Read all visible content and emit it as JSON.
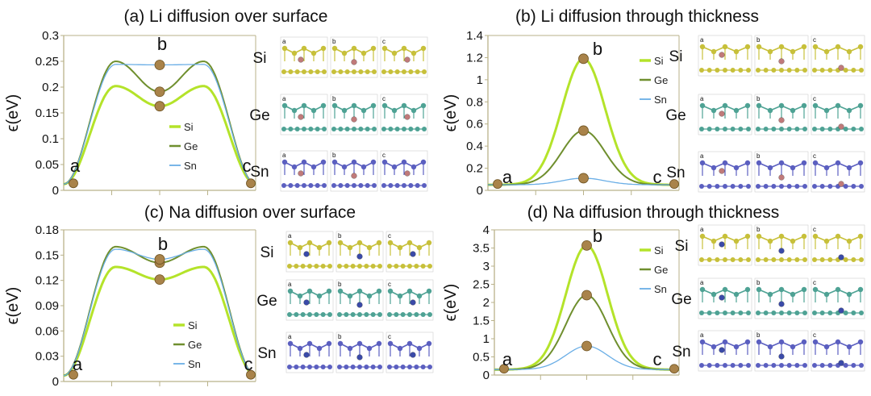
{
  "colors": {
    "si": "#b4e32a",
    "ge": "#6f8f2e",
    "sn": "#6aaee6",
    "axis": "#b9b28a",
    "marker": "#a9834a",
    "si_atom": "#c7c03a",
    "ge_atom": "#4ea294",
    "sn_atom": "#5b5fc0",
    "li_atom": "#c07a7a",
    "na_atom": "#3a4aa8"
  },
  "chart_data": [
    {
      "id": "a",
      "type": "line",
      "title": "(a) Li diffusion over surface",
      "ylabel": "ϵ(eV)",
      "ylim": [
        0,
        0.3
      ],
      "yticks": [
        "0",
        "0.05",
        "0.1",
        "0.15",
        "0.2",
        "0.25",
        "0.3"
      ],
      "shape": "double-hump",
      "series": [
        {
          "name": "Si",
          "color_key": "si",
          "values": [
            0.012,
            0.202,
            0.163,
            0.202,
            0.012
          ]
        },
        {
          "name": "Ge",
          "color_key": "ge",
          "values": [
            0.012,
            0.25,
            0.191,
            0.25,
            0.012
          ]
        },
        {
          "name": "Sn",
          "color_key": "sn",
          "values": [
            0.012,
            0.244,
            0.243,
            0.244,
            0.012
          ]
        }
      ],
      "point_labels": [
        "a",
        "b",
        "c"
      ],
      "element_labels": [
        "Si",
        "Ge",
        "Sn"
      ],
      "thumb_labels": [
        "a",
        "b",
        "c"
      ],
      "ion": "li"
    },
    {
      "id": "b",
      "type": "line",
      "title": "(b) Li diffusion through thickness",
      "ylabel": "ϵ(eV)",
      "ylim": [
        0,
        1.4
      ],
      "yticks": [
        "0",
        "0.2",
        "0.4",
        "0.6",
        "0.8",
        "1",
        "1.2",
        "1.4"
      ],
      "shape": "single-peak",
      "series": [
        {
          "name": "Si",
          "color_key": "si",
          "values": [
            0.05,
            1.19,
            0.05
          ]
        },
        {
          "name": "Ge",
          "color_key": "ge",
          "values": [
            0.05,
            0.54,
            0.05
          ]
        },
        {
          "name": "Sn",
          "color_key": "sn",
          "values": [
            0.05,
            0.11,
            0.05
          ]
        }
      ],
      "point_labels": [
        "a",
        "b",
        "c"
      ],
      "element_labels": [
        "Si",
        "Ge",
        "Sn"
      ],
      "thumb_labels": [
        "a",
        "b",
        "c"
      ],
      "ion": "li"
    },
    {
      "id": "c",
      "type": "line",
      "title": "(c) Na diffusion over surface",
      "ylabel": "ϵ(eV)",
      "ylim": [
        0,
        0.18
      ],
      "yticks": [
        "0",
        "0.03",
        "0.06",
        "0.09",
        "0.12",
        "0.15",
        "0.18"
      ],
      "shape": "double-hump",
      "series": [
        {
          "name": "Si",
          "color_key": "si",
          "values": [
            0.007,
            0.136,
            0.121,
            0.136,
            0.007
          ]
        },
        {
          "name": "Ge",
          "color_key": "ge",
          "values": [
            0.007,
            0.16,
            0.141,
            0.16,
            0.007
          ]
        },
        {
          "name": "Sn",
          "color_key": "sn",
          "values": [
            0.007,
            0.157,
            0.145,
            0.157,
            0.007
          ]
        }
      ],
      "point_labels": [
        "a",
        "b",
        "c"
      ],
      "element_labels": [
        "Si",
        "Ge",
        "Sn"
      ],
      "thumb_labels": [
        "a",
        "b",
        "c"
      ],
      "ion": "na"
    },
    {
      "id": "d",
      "type": "line",
      "title": "(d) Na diffusion through thickness",
      "ylabel": "ϵ(eV)",
      "ylim": [
        0,
        4
      ],
      "yticks": [
        "0",
        "0.5",
        "1",
        "1.5",
        "2",
        "2.5",
        "3",
        "3.5",
        "4"
      ],
      "shape": "single-peak",
      "series": [
        {
          "name": "Si",
          "color_key": "si",
          "values": [
            0.15,
            3.57,
            0.15
          ]
        },
        {
          "name": "Ge",
          "color_key": "ge",
          "values": [
            0.15,
            2.2,
            0.15
          ]
        },
        {
          "name": "Sn",
          "color_key": "sn",
          "values": [
            0.15,
            0.8,
            0.15
          ]
        }
      ],
      "point_labels": [
        "a",
        "b",
        "c"
      ],
      "element_labels": [
        "Si",
        "Ge",
        "Sn"
      ],
      "thumb_labels": [
        "a",
        "b",
        "c"
      ],
      "ion": "na"
    }
  ]
}
